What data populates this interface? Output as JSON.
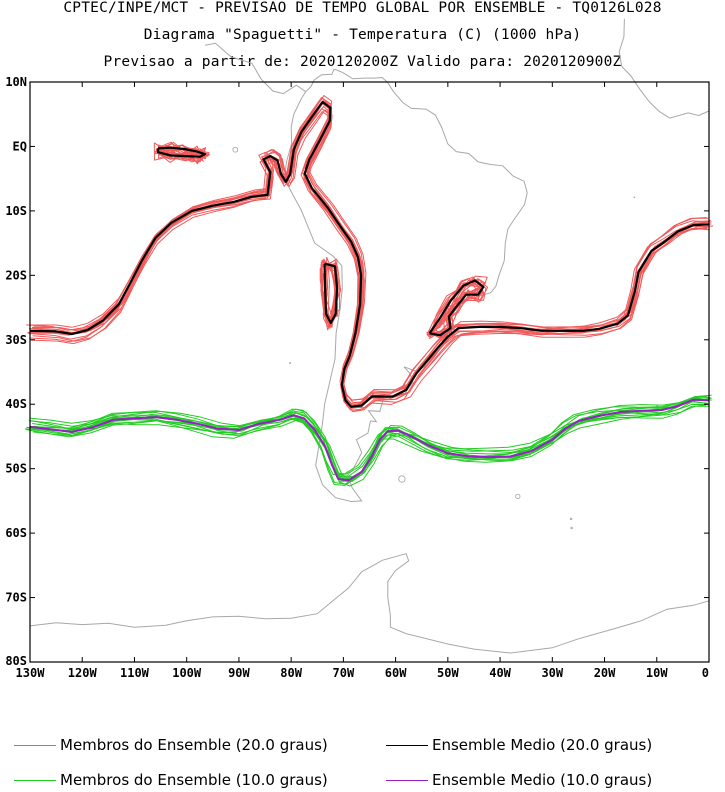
{
  "header": {
    "line1": "CPTEC/INPE/MCT - PREVISAO DE TEMPO GLOBAL POR ENSEMBLE - TQ0126L028",
    "line2": "Diagrama \"Spaguetti\" - Temperatura (C) (1000 hPa)",
    "line3": "Previsao a partir de: 2020120200Z  Valido para: 2020120900Z"
  },
  "chart_data": {
    "type": "line",
    "map_projection": "cylindrical",
    "xlim": [
      -130,
      0
    ],
    "ylim": [
      -80,
      10
    ],
    "x_ticks": [
      {
        "value": -130,
        "label": "130W"
      },
      {
        "value": -120,
        "label": "120W"
      },
      {
        "value": -110,
        "label": "110W"
      },
      {
        "value": -100,
        "label": "100W"
      },
      {
        "value": -90,
        "label": "90W"
      },
      {
        "value": -80,
        "label": "80W"
      },
      {
        "value": -70,
        "label": "70W"
      },
      {
        "value": -60,
        "label": "60W"
      },
      {
        "value": -50,
        "label": "50W"
      },
      {
        "value": -40,
        "label": "40W"
      },
      {
        "value": -30,
        "label": "30W"
      },
      {
        "value": -20,
        "label": "20W"
      },
      {
        "value": -10,
        "label": "10W"
      },
      {
        "value": 0,
        "label": "0"
      }
    ],
    "y_ticks": [
      {
        "value": 10,
        "label": "10N"
      },
      {
        "value": 0,
        "label": "EQ"
      },
      {
        "value": -10,
        "label": "10S"
      },
      {
        "value": -20,
        "label": "20S"
      },
      {
        "value": -30,
        "label": "30S"
      },
      {
        "value": -40,
        "label": "40S"
      },
      {
        "value": -50,
        "label": "50S"
      },
      {
        "value": -60,
        "label": "60S"
      },
      {
        "value": -70,
        "label": "70S"
      },
      {
        "value": -80,
        "label": "80S"
      }
    ],
    "grid": false,
    "legend_position": "bottom",
    "colors": {
      "member_20": "#f05a5a",
      "mean_20": "#000000",
      "member_10": "#22cc22",
      "mean_10": "#9a1ec8",
      "coastline": "#a8a8a8"
    },
    "series": [
      {
        "name": "Ensemble Medio (20.0 graus)",
        "role": "mean",
        "isotherm": 20,
        "color": "#000000",
        "lines": [
          [
            [
              -130,
              -28.6
            ],
            [
              -125,
              -28.7
            ],
            [
              -122,
              -29.1
            ],
            [
              -119,
              -28.5
            ],
            [
              -116,
              -27.0
            ],
            [
              -113,
              -24.5
            ],
            [
              -111,
              -21.5
            ],
            [
              -108.5,
              -17.6
            ],
            [
              -106,
              -14.2
            ],
            [
              -103,
              -11.9
            ],
            [
              -99,
              -10.0
            ],
            [
              -95,
              -9.2
            ],
            [
              -91,
              -8.6
            ],
            [
              -87.5,
              -7.8
            ],
            [
              -84.5,
              -7.5
            ],
            [
              -84,
              -4.0
            ],
            [
              -85.3,
              -2.0
            ],
            [
              -84,
              -1.5
            ],
            [
              -82.6,
              -2.2
            ],
            [
              -82,
              -4.2
            ],
            [
              -81,
              -5.5
            ],
            [
              -80.2,
              -4.3
            ],
            [
              -79.5,
              -0.5
            ],
            [
              -78,
              2.3
            ],
            [
              -76,
              4.6
            ],
            [
              -74,
              6.9
            ],
            [
              -72.5,
              6.0
            ],
            [
              -72.6,
              4.0
            ],
            [
              -74.5,
              1.0
            ],
            [
              -76.5,
              -2.0
            ],
            [
              -77.4,
              -4.2
            ],
            [
              -76,
              -6.5
            ],
            [
              -73,
              -9.5
            ],
            [
              -70.5,
              -12.5
            ],
            [
              -68.5,
              -14.8
            ],
            [
              -67.2,
              -17.2
            ],
            [
              -66.6,
              -20.0
            ],
            [
              -66.8,
              -24.5
            ],
            [
              -67.7,
              -29.0
            ],
            [
              -68.8,
              -32.5
            ],
            [
              -69.8,
              -34.5
            ],
            [
              -70.3,
              -37.0
            ],
            [
              -69.6,
              -39.4
            ],
            [
              -68.5,
              -40.4
            ],
            [
              -66.5,
              -40.2
            ],
            [
              -64.5,
              -38.8
            ],
            [
              -60.5,
              -38.8
            ],
            [
              -58,
              -37.8
            ],
            [
              -56,
              -35.2
            ],
            [
              -53.5,
              -32.8
            ],
            [
              -52,
              -31.3
            ],
            [
              -50,
              -29.5
            ],
            [
              -48,
              -28.2
            ],
            [
              -44,
              -28.0
            ],
            [
              -40,
              -28.0
            ],
            [
              -36,
              -28.2
            ],
            [
              -32,
              -28.6
            ],
            [
              -28,
              -28.6
            ],
            [
              -24,
              -28.6
            ],
            [
              -21,
              -28.3
            ],
            [
              -17.5,
              -27.5
            ],
            [
              -15.5,
              -26.2
            ],
            [
              -14.2,
              -22.5
            ],
            [
              -13.5,
              -19.5
            ],
            [
              -11,
              -16.2
            ],
            [
              -8.5,
              -14.8
            ],
            [
              -6,
              -13.2
            ],
            [
              -3,
              -12.2
            ],
            [
              0,
              -12.1
            ]
          ],
          [
            [
              -105.5,
              -0.3
            ],
            [
              -103,
              -0.2
            ],
            [
              -100.5,
              -0.4
            ],
            [
              -98,
              -0.8
            ],
            [
              -96.5,
              -1.2
            ],
            [
              -97.5,
              -1.6
            ],
            [
              -100,
              -1.5
            ],
            [
              -103,
              -1.4
            ],
            [
              -105.5,
              -0.9
            ],
            [
              -105.5,
              -0.3
            ]
          ],
          [
            [
              -73.6,
              -18.2
            ],
            [
              -71.6,
              -18.6
            ],
            [
              -71.2,
              -22.0
            ],
            [
              -71.5,
              -26.0
            ],
            [
              -72.4,
              -27.4
            ],
            [
              -73.3,
              -26.0
            ],
            [
              -73.5,
              -22.0
            ],
            [
              -73.6,
              -18.2
            ]
          ],
          [
            [
              -53.5,
              -29.0
            ],
            [
              -51.8,
              -27.0
            ],
            [
              -49.5,
              -24.0
            ],
            [
              -47,
              -21.6
            ],
            [
              -44.8,
              -20.8
            ],
            [
              -43.2,
              -21.8
            ],
            [
              -44.2,
              -23.0
            ],
            [
              -46.5,
              -23.0
            ],
            [
              -48.5,
              -25.0
            ],
            [
              -49.8,
              -26.4
            ],
            [
              -49.5,
              -28.2
            ],
            [
              -51.5,
              -29.3
            ],
            [
              -53.5,
              -29.0
            ]
          ]
        ]
      },
      {
        "name": "Ensemble Medio (10.0 graus)",
        "role": "mean",
        "isotherm": 10,
        "color": "#9a1ec8",
        "lines": [
          [
            [
              -130,
              -43.5
            ],
            [
              -126,
              -43.9
            ],
            [
              -122,
              -44.3
            ],
            [
              -118,
              -43.6
            ],
            [
              -114,
              -42.4
            ],
            [
              -110,
              -42.2
            ],
            [
              -106,
              -42.0
            ],
            [
              -102,
              -42.4
            ],
            [
              -98,
              -43.0
            ],
            [
              -94,
              -43.8
            ],
            [
              -90,
              -44.0
            ],
            [
              -86,
              -43.0
            ],
            [
              -82,
              -42.4
            ],
            [
              -79.5,
              -41.7
            ],
            [
              -77.5,
              -42.2
            ],
            [
              -75.5,
              -44.0
            ],
            [
              -73.5,
              -46.5
            ],
            [
              -72.2,
              -49.4
            ],
            [
              -71,
              -51.6
            ],
            [
              -69,
              -51.8
            ],
            [
              -66.5,
              -50.5
            ],
            [
              -64.5,
              -48.0
            ],
            [
              -63,
              -45.5
            ],
            [
              -61.5,
              -44.2
            ],
            [
              -59.5,
              -44.1
            ],
            [
              -57,
              -45.0
            ],
            [
              -54,
              -46.3
            ],
            [
              -50,
              -47.6
            ],
            [
              -46,
              -48.1
            ],
            [
              -42,
              -48.2
            ],
            [
              -38,
              -48.1
            ],
            [
              -34,
              -47.3
            ],
            [
              -30,
              -45.5
            ],
            [
              -27.5,
              -43.8
            ],
            [
              -25,
              -42.6
            ],
            [
              -21,
              -41.8
            ],
            [
              -17,
              -41.2
            ],
            [
              -13,
              -41.0
            ],
            [
              -9,
              -40.9
            ],
            [
              -6,
              -40.3
            ],
            [
              -3,
              -39.3
            ],
            [
              0,
              -39.4
            ]
          ]
        ]
      },
      {
        "name": "Membros do Ensemble (20.0 graus)",
        "role": "members",
        "isotherm": 20,
        "color": "#f05a5a",
        "member_count": 14
      },
      {
        "name": "Membros do Ensemble (10.0 graus)",
        "role": "members",
        "isotherm": 10,
        "color": "#22cc22",
        "member_count": 14
      }
    ]
  },
  "legend": {
    "member_20": "Membros do Ensemble (20.0 graus)",
    "mean_20": "Ensemble Medio (20.0 graus)",
    "member_10": "Membros do Ensemble (10.0 graus)",
    "mean_10": "Ensemble Medio (10.0 graus)"
  }
}
